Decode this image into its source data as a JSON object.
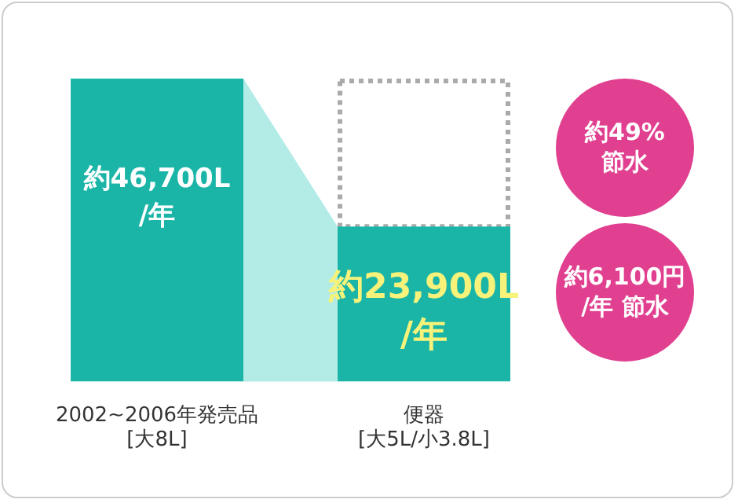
{
  "chart_data": {
    "type": "bar",
    "categories": [
      "2002~2006年発売品\n[大8L]",
      "便器\n[大5L/小3.8L]"
    ],
    "values": [
      46700,
      23900
    ],
    "colors": [
      "#1ab5a7",
      "#1ab5a7"
    ],
    "data_labels": false,
    "value_labels": [
      "約46,700L\n/年",
      "約23,900L\n/年"
    ],
    "grid": false,
    "legend": false,
    "annotations": [
      "約49%\n節水",
      "約6,100円\n/年 節水"
    ]
  }
}
